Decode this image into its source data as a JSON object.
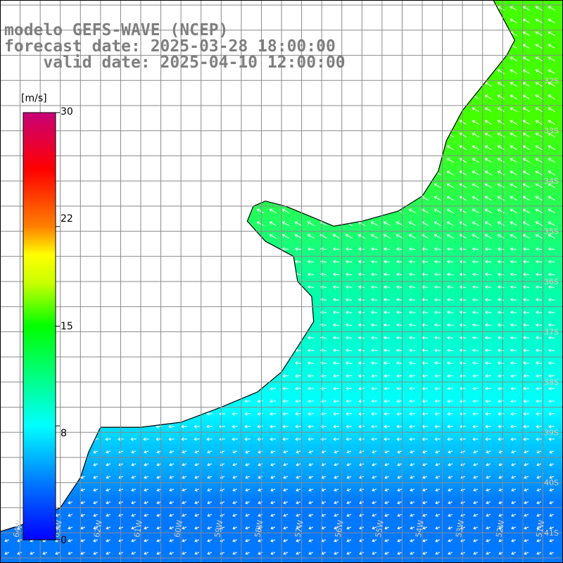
{
  "header": {
    "model_line": "modelo GEFS-WAVE (NCEP)",
    "forecast_line": "forecast date: 2025-03-28 18:00:00",
    "valid_line": "    valid date: 2025-04-10 12:00:00"
  },
  "colorbar": {
    "unit": "[m/s]",
    "ticks": [
      {
        "value": 30,
        "label": "30"
      },
      {
        "value": 22,
        "label": "22"
      },
      {
        "value": 15,
        "label": "15"
      },
      {
        "value": 8,
        "label": "8"
      },
      {
        "value": 0,
        "label": "0"
      }
    ],
    "min": 0,
    "max": 30,
    "stops": [
      {
        "value": 0,
        "color": "#0000ff"
      },
      {
        "value": 4,
        "color": "#0078ff"
      },
      {
        "value": 8,
        "color": "#00ffff"
      },
      {
        "value": 11.5,
        "color": "#00ff80"
      },
      {
        "value": 15,
        "color": "#00ff00"
      },
      {
        "value": 18,
        "color": "#c8ff00"
      },
      {
        "value": 20,
        "color": "#ffff00"
      },
      {
        "value": 22,
        "color": "#ff8000"
      },
      {
        "value": 26,
        "color": "#ff0000"
      },
      {
        "value": 30,
        "color": "#c80078"
      }
    ]
  },
  "map": {
    "lon_range": [
      -64.5,
      -50.5
    ],
    "lat_range": [
      -41.6,
      -30.4
    ],
    "grid_color": "#8a8a8a",
    "land_color": "#ffffff",
    "coast_color": "#000000",
    "arrow_color": "#ffffff",
    "lat_labels": [
      {
        "lat": -32,
        "label": "32S"
      },
      {
        "lat": -33,
        "label": "33S"
      },
      {
        "lat": -34,
        "label": "34S"
      },
      {
        "lat": -35,
        "label": "35S"
      },
      {
        "lat": -36,
        "label": "36S"
      },
      {
        "lat": -37,
        "label": "37S"
      },
      {
        "lat": -38,
        "label": "38S"
      },
      {
        "lat": -39,
        "label": "39S"
      },
      {
        "lat": -40,
        "label": "40S"
      },
      {
        "lat": -41,
        "label": "41S"
      }
    ],
    "lon_labels": [
      {
        "lon": -64,
        "label": "64W"
      },
      {
        "lon": -63,
        "label": "63W"
      },
      {
        "lon": -62,
        "label": "62W"
      },
      {
        "lon": -61,
        "label": "61W"
      },
      {
        "lon": -60,
        "label": "60W"
      },
      {
        "lon": -59,
        "label": "59W"
      },
      {
        "lon": -58,
        "label": "58W"
      },
      {
        "lon": -57,
        "label": "57W"
      },
      {
        "lon": -56,
        "label": "56W"
      },
      {
        "lon": -55,
        "label": "55W"
      },
      {
        "lon": -54,
        "label": "54W"
      },
      {
        "lon": -53,
        "label": "53W"
      },
      {
        "lon": -52,
        "label": "52W"
      },
      {
        "lon": -51,
        "label": "51W"
      }
    ],
    "coast_points": [
      [
        -52.3,
        -30.3
      ],
      [
        -52.1,
        -30.6
      ],
      [
        -51.9,
        -30.9
      ],
      [
        -51.7,
        -31.2
      ],
      [
        -51.9,
        -31.5
      ],
      [
        -52.2,
        -31.8
      ],
      [
        -52.6,
        -32.2
      ],
      [
        -53.0,
        -32.6
      ],
      [
        -53.4,
        -33.2
      ],
      [
        -53.6,
        -33.8
      ],
      [
        -54.0,
        -34.3
      ],
      [
        -54.6,
        -34.6
      ],
      [
        -55.5,
        -34.8
      ],
      [
        -56.2,
        -34.9
      ],
      [
        -56.8,
        -34.7
      ],
      [
        -57.4,
        -34.5
      ],
      [
        -57.9,
        -34.4
      ],
      [
        -58.2,
        -34.5
      ],
      [
        -58.35,
        -34.8
      ],
      [
        -57.9,
        -35.2
      ],
      [
        -57.2,
        -35.5
      ],
      [
        -57.1,
        -36.0
      ],
      [
        -56.75,
        -36.3
      ],
      [
        -56.7,
        -36.8
      ],
      [
        -57.1,
        -37.3
      ],
      [
        -57.5,
        -37.8
      ],
      [
        -58.1,
        -38.2
      ],
      [
        -59.0,
        -38.5
      ],
      [
        -60.0,
        -38.8
      ],
      [
        -61.0,
        -38.9
      ],
      [
        -62.0,
        -38.9
      ],
      [
        -62.3,
        -39.4
      ],
      [
        -62.5,
        -39.9
      ],
      [
        -63.0,
        -40.5
      ],
      [
        -63.8,
        -40.8
      ],
      [
        -64.6,
        -41.0
      ]
    ],
    "wind_regions": [
      {
        "lat_from": -30.4,
        "lat_to": -35.2,
        "speed": 16,
        "direction_to_deg": 300
      },
      {
        "lat_from": -35.2,
        "lat_to": -37.8,
        "speed": 10,
        "direction_to_deg": 275
      },
      {
        "lat_from": -37.8,
        "lat_to": -39.2,
        "speed": 8,
        "direction_to_deg": 265
      },
      {
        "lat_from": -39.2,
        "lat_to": -41.6,
        "speed": 4,
        "direction_to_deg": 250
      }
    ]
  }
}
